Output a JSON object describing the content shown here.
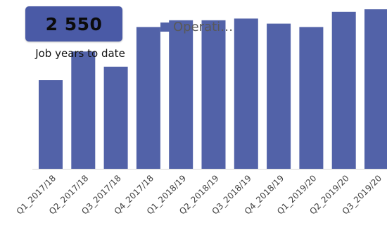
{
  "kpi": {
    "value": "2 550",
    "caption": "Job years to date",
    "box_color": "#4a5aa6"
  },
  "legend": {
    "label": "Operati…"
  },
  "colors": {
    "bar": "#5262a8",
    "axis": "#d9d9d9"
  },
  "chart_data": {
    "type": "bar",
    "categories": [
      "Q1_2017/18",
      "Q2_2017/18",
      "Q3_2017/18",
      "Q4_2017/18",
      "Q1_2018/19",
      "Q2_2018/19",
      "Q3_2018/19",
      "Q4_2018/19",
      "Q1_2019/20",
      "Q2_2019/20",
      "Q3_2019/20"
    ],
    "series": [
      {
        "values": [
          105,
          139,
          121,
          168,
          176,
          176,
          178,
          172,
          168,
          186,
          189
        ]
      }
    ],
    "ylim": [
      0,
      200
    ],
    "grid": false,
    "legend_position": "top"
  }
}
